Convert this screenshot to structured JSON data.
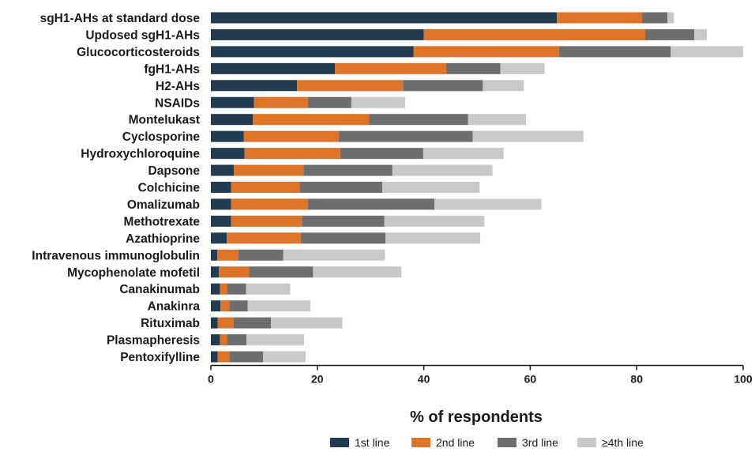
{
  "chart_data": {
    "type": "bar",
    "orientation": "horizontal",
    "stacked": true,
    "title": "",
    "xlabel": "% of respondents",
    "ylabel": "",
    "xlim": [
      0,
      100
    ],
    "xticks": [
      0,
      20,
      40,
      60,
      80,
      100
    ],
    "grid": false,
    "legend_position": "bottom",
    "categories": [
      "sgH1-AHs at standard dose",
      "Updosed sgH1-AHs",
      "Glucocorticosteroids",
      "fgH1-AHs",
      "H2-AHs",
      "NSAIDs",
      "Montelukast",
      "Cyclosporine",
      "Hydroxychloroquine",
      "Dapsone",
      "Colchicine",
      "Omalizumab",
      "Methotrexate",
      "Azathioprine",
      "Intravenous immunoglobulin",
      "Mycophenolate mofetil",
      "Canakinumab",
      "Anakinra",
      "Rituximab",
      "Plasmapheresis",
      "Pentoxifylline"
    ],
    "series": [
      {
        "name": "1st line",
        "color": "#243c52",
        "values": [
          65.0,
          40.0,
          38.1,
          23.3,
          16.2,
          8.1,
          7.9,
          6.2,
          6.3,
          4.3,
          3.8,
          3.8,
          3.8,
          3.0,
          1.2,
          1.5,
          1.7,
          1.8,
          1.3,
          1.7,
          1.3
        ]
      },
      {
        "name": "2nd line",
        "color": "#dd7428",
        "values": [
          16.0,
          41.6,
          27.3,
          20.9,
          19.9,
          10.1,
          21.8,
          17.8,
          18.0,
          13.1,
          12.9,
          14.4,
          13.3,
          13.9,
          4.0,
          5.7,
          1.3,
          1.7,
          3.0,
          1.3,
          2.2
        ]
      },
      {
        "name": "3rd line",
        "color": "#6e6e6e",
        "values": [
          4.8,
          9.2,
          21.0,
          10.2,
          15.0,
          8.2,
          18.6,
          25.2,
          15.6,
          16.7,
          15.5,
          23.8,
          15.5,
          15.9,
          8.4,
          12.0,
          3.6,
          3.4,
          7.0,
          3.7,
          6.3
        ]
      },
      {
        "name": "≥4th line",
        "color": "#c9c9c9",
        "values": [
          1.2,
          2.4,
          13.6,
          8.3,
          7.7,
          10.1,
          10.9,
          20.8,
          15.1,
          18.8,
          18.3,
          20.1,
          18.8,
          17.8,
          19.1,
          16.6,
          8.3,
          11.8,
          13.4,
          10.8,
          8.0
        ]
      }
    ]
  }
}
